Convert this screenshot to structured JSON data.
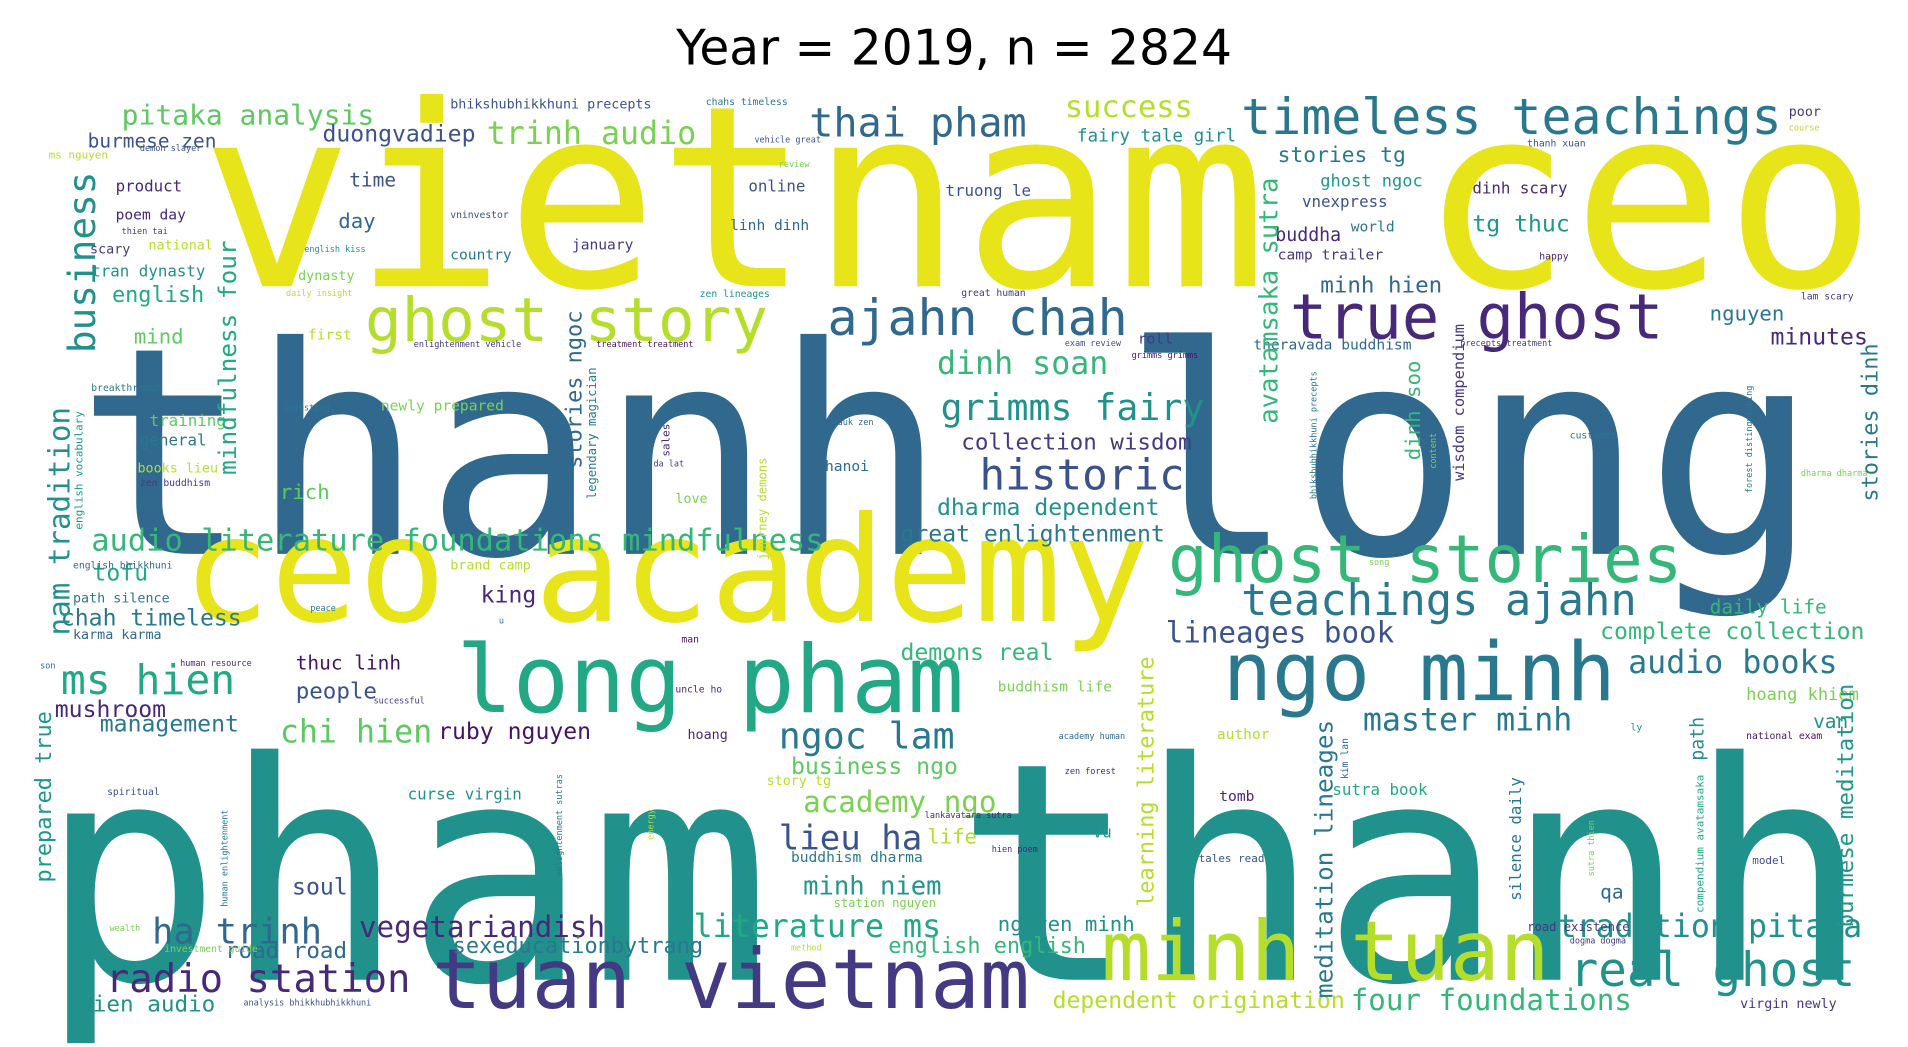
{
  "chart_data": {
    "type": "wordcloud",
    "title": "Year = 2019, n = 2824",
    "words": [
      {
        "text": "vietnam ceo",
        "color": "#e7e419"
      },
      {
        "text": "thanh long",
        "color": "#31688e"
      },
      {
        "text": "pham thanh",
        "color": "#21918c"
      },
      {
        "text": "ceo academy",
        "color": "#e7e419"
      },
      {
        "text": "long pham",
        "color": "#22a884"
      },
      {
        "text": "ngo minh",
        "color": "#2a788e"
      },
      {
        "text": "tuan vietnam",
        "color": "#443983"
      },
      {
        "text": "minh tuan",
        "color": "#b5de2b"
      },
      {
        "text": "ghost stories",
        "color": "#35b779"
      },
      {
        "text": "timeless teachings",
        "color": "#2a788e"
      },
      {
        "text": "ghost story",
        "color": "#b5de2b"
      },
      {
        "text": "true ghost",
        "color": "#482878"
      },
      {
        "text": "ajahn chah",
        "color": "#31688e"
      },
      {
        "text": "teachings ajahn",
        "color": "#2a788e"
      },
      {
        "text": "real ghost",
        "color": "#21918c"
      },
      {
        "text": "radio station",
        "color": "#482878"
      },
      {
        "text": "historic",
        "color": "#3b528b"
      },
      {
        "text": "grimms fairy",
        "color": "#21918c"
      },
      {
        "text": "thai pham",
        "color": "#31688e"
      },
      {
        "text": "trinh audio",
        "color": "#7ad151"
      },
      {
        "text": "pitaka analysis",
        "color": "#5ec962"
      },
      {
        "text": "success",
        "color": "#b5de2b"
      },
      {
        "text": "ms hien",
        "color": "#22a884"
      },
      {
        "text": "chi hien",
        "color": "#5ec962"
      },
      {
        "text": "ngoc lam",
        "color": "#2a788e"
      },
      {
        "text": "academy ngo",
        "color": "#7ad151"
      },
      {
        "text": "lieu ha",
        "color": "#3b528b"
      },
      {
        "text": "minh niem",
        "color": "#1f988b"
      },
      {
        "text": "ha trinh",
        "color": "#31688e"
      },
      {
        "text": "vegetariandish",
        "color": "#482878"
      },
      {
        "text": "literature ms",
        "color": "#22a884"
      },
      {
        "text": "tradition pitaka",
        "color": "#21918c"
      },
      {
        "text": "audio literature foundations mindfulness",
        "color": "#35b779"
      },
      {
        "text": "master minh",
        "color": "#2a788e"
      },
      {
        "text": "audio books",
        "color": "#2a788e"
      },
      {
        "text": "lineages book",
        "color": "#3b528b"
      },
      {
        "text": "dinh soan",
        "color": "#35b779"
      },
      {
        "text": "collection wisdom",
        "color": "#443983"
      },
      {
        "text": "dharma dependent",
        "color": "#21918c"
      },
      {
        "text": "great enlightenment",
        "color": "#2a788e"
      },
      {
        "text": "business ngo",
        "color": "#5ec962"
      },
      {
        "text": "four foundations",
        "color": "#35b779"
      },
      {
        "text": "dependent origination",
        "color": "#b5de2b"
      },
      {
        "text": "english english",
        "color": "#35b779"
      },
      {
        "text": "nguyen minh",
        "color": "#21918c"
      },
      {
        "text": "sexeducationbytrang",
        "color": "#2a788e"
      },
      {
        "text": "road road",
        "color": "#31688e"
      },
      {
        "text": "hien audio",
        "color": "#21918c"
      },
      {
        "text": "soul",
        "color": "#3b528b"
      },
      {
        "text": "ruby nguyen",
        "color": "#471365"
      },
      {
        "text": "thuc linh",
        "color": "#471365"
      },
      {
        "text": "people",
        "color": "#3b528b"
      },
      {
        "text": "demons real",
        "color": "#35b779"
      },
      {
        "text": "king",
        "color": "#482878"
      },
      {
        "text": "tofu",
        "color": "#22a884"
      },
      {
        "text": "chah timeless",
        "color": "#2a788e"
      },
      {
        "text": "mushroom",
        "color": "#482878"
      },
      {
        "text": "management",
        "color": "#2a788e"
      },
      {
        "text": "daily life",
        "color": "#35b779"
      },
      {
        "text": "complete collection",
        "color": "#35b779"
      },
      {
        "text": "hoang khiem",
        "color": "#7ad151"
      },
      {
        "text": "van",
        "color": "#21918c"
      },
      {
        "text": "minutes",
        "color": "#482878"
      },
      {
        "text": "nguyen",
        "color": "#2a788e"
      },
      {
        "text": "minh hien",
        "color": "#31688e"
      },
      {
        "text": "tg thuc",
        "color": "#1f988b"
      },
      {
        "text": "ghost ngoc",
        "color": "#1f988b"
      },
      {
        "text": "stories tg",
        "color": "#2a788e"
      },
      {
        "text": "vnexpress",
        "color": "#3b528b"
      },
      {
        "text": "buddha",
        "color": "#482878"
      },
      {
        "text": "world",
        "color": "#2a788e"
      },
      {
        "text": "camp trailer",
        "color": "#443983"
      },
      {
        "text": "dinh scary",
        "color": "#482878"
      },
      {
        "text": "fairy tale girl",
        "color": "#21918c"
      },
      {
        "text": "duongvadiep",
        "color": "#3b528b"
      },
      {
        "text": "burmese zen",
        "color": "#3b528b"
      },
      {
        "text": "bhikshubhikkhuni precepts",
        "color": "#3b528b"
      },
      {
        "text": "product",
        "color": "#482878"
      },
      {
        "text": "time",
        "color": "#3b528b"
      },
      {
        "text": "online",
        "color": "#3b528b"
      },
      {
        "text": "truong le",
        "color": "#3b528b"
      },
      {
        "text": "poem day",
        "color": "#482878"
      },
      {
        "text": "day",
        "color": "#31688e"
      },
      {
        "text": "linh dinh",
        "color": "#31688e"
      },
      {
        "text": "january",
        "color": "#443983"
      },
      {
        "text": "country",
        "color": "#2a788e"
      },
      {
        "text": "scary",
        "color": "#443983"
      },
      {
        "text": "national",
        "color": "#b5de2b"
      },
      {
        "text": "tran dynasty",
        "color": "#21918c"
      },
      {
        "text": "dynasty",
        "color": "#7ad151"
      },
      {
        "text": "english",
        "color": "#22a884"
      },
      {
        "text": "mind",
        "color": "#5ec962"
      },
      {
        "text": "first",
        "color": "#b5de2b"
      },
      {
        "text": "roll",
        "color": "#443983"
      },
      {
        "text": "newly prepared",
        "color": "#7ad151"
      },
      {
        "text": "training",
        "color": "#5ec962"
      },
      {
        "text": "general",
        "color": "#2a788e"
      },
      {
        "text": "books lieu",
        "color": "#b5de2b"
      },
      {
        "text": "rich",
        "color": "#5ec962"
      },
      {
        "text": "love",
        "color": "#7ad151"
      },
      {
        "text": "hanoi",
        "color": "#31688e"
      },
      {
        "text": "tomb",
        "color": "#482878"
      },
      {
        "text": "sutra book",
        "color": "#22a884"
      },
      {
        "text": "vu",
        "color": "#1f988b"
      },
      {
        "text": "life",
        "color": "#b5de2b"
      },
      {
        "text": "buddhism dharma",
        "color": "#2a788e"
      },
      {
        "text": "station nguyen",
        "color": "#7ad151"
      },
      {
        "text": "curse virgin",
        "color": "#21918c"
      },
      {
        "text": "story tg",
        "color": "#b5de2b"
      },
      {
        "text": "hoang",
        "color": "#482878"
      },
      {
        "text": "author",
        "color": "#b5de2b"
      },
      {
        "text": "buddhism life",
        "color": "#7ad151"
      },
      {
        "text": "brand camp",
        "color": "#b5de2b"
      },
      {
        "text": "path silence",
        "color": "#2a788e"
      },
      {
        "text": "karma karma",
        "color": "#31688e"
      },
      {
        "text": "tales read",
        "color": "#3b528b"
      },
      {
        "text": "road existence",
        "color": "#443983"
      },
      {
        "text": "model",
        "color": "#3b528b"
      },
      {
        "text": "virgin newly",
        "color": "#443983"
      },
      {
        "text": "poor",
        "color": "#443983"
      },
      {
        "text": "thanh xuan",
        "color": "#3b528b"
      },
      {
        "text": "happy",
        "color": "#482878"
      },
      {
        "text": "customer",
        "color": "#2a788e"
      },
      {
        "text": "ly",
        "color": "#21918c"
      },
      {
        "text": "national exam",
        "color": "#471365"
      },
      {
        "text": "uncle ho",
        "color": "#482878"
      },
      {
        "text": "successful",
        "color": "#443983"
      },
      {
        "text": "man",
        "color": "#471365"
      },
      {
        "text": "peace",
        "color": "#2a788e"
      },
      {
        "text": "u",
        "color": "#2a788e"
      },
      {
        "text": "daily insight",
        "color": "#b5de2b"
      },
      {
        "text": "zen lineages",
        "color": "#21918c"
      },
      {
        "text": "great human",
        "color": "#443983"
      },
      {
        "text": "lam scary",
        "color": "#443983"
      },
      {
        "text": "exam review",
        "color": "#3b528b"
      },
      {
        "text": "precepts treatment",
        "color": "#443983"
      },
      {
        "text": "theravada buddhism",
        "color": "#31688e"
      },
      {
        "text": "enlightenment vehicle",
        "color": "#443983"
      },
      {
        "text": "treatment treatment",
        "color": "#471365"
      },
      {
        "text": "grimms grimms",
        "color": "#471365"
      },
      {
        "text": "breakthrough",
        "color": "#2a788e"
      },
      {
        "text": "investing",
        "color": "#2a788e"
      },
      {
        "text": "paauk zen",
        "color": "#31688e"
      },
      {
        "text": "zen buddhism",
        "color": "#443983"
      },
      {
        "text": "da lat",
        "color": "#443983"
      },
      {
        "text": "dharma dharma",
        "color": "#7ad151"
      },
      {
        "text": "song",
        "color": "#7ad151"
      },
      {
        "text": "son",
        "color": "#31688e"
      },
      {
        "text": "human resource",
        "color": "#482878"
      },
      {
        "text": "academy human",
        "color": "#31688e"
      },
      {
        "text": "zen forest",
        "color": "#482878"
      },
      {
        "text": "hien poem",
        "color": "#482878"
      },
      {
        "text": "spiritual",
        "color": "#3b528b"
      },
      {
        "text": "wealth",
        "color": "#7ad151"
      },
      {
        "text": "investment guide",
        "color": "#7ad151"
      },
      {
        "text": "method",
        "color": "#b5de2b"
      },
      {
        "text": "analysis bhikkhubhikkhuni",
        "color": "#3b528b"
      },
      {
        "text": "dogma dogma",
        "color": "#443983"
      },
      {
        "text": "vehicle great",
        "color": "#3b528b"
      },
      {
        "text": "chahs timeless",
        "color": "#2a788e"
      },
      {
        "text": "review",
        "color": "#7ad151"
      },
      {
        "text": "thien tai",
        "color": "#443983"
      },
      {
        "text": "english kiss",
        "color": "#21918c"
      },
      {
        "text": "vninvestor",
        "color": "#3b528b"
      },
      {
        "text": "course",
        "color": "#b5de2b"
      },
      {
        "text": "demon slayer",
        "color": "#3b528b"
      },
      {
        "text": "ms nguyen",
        "color": "#b5de2b"
      },
      {
        "text": "english bhikkhuni",
        "color": "#31688e"
      },
      {
        "text": "lankavatara sutra",
        "color": "#482878"
      },
      {
        "text": "business",
        "color": "#21918c"
      },
      {
        "text": "nam tradition",
        "color": "#21918c"
      },
      {
        "text": "mindfulness four",
        "color": "#22a884"
      },
      {
        "text": "avatamsaka sutra",
        "color": "#35b779"
      },
      {
        "text": "stories ngoc",
        "color": "#31688e"
      },
      {
        "text": "meditation lineages",
        "color": "#2a788e"
      },
      {
        "text": "learning literature",
        "color": "#b5de2b"
      },
      {
        "text": "burmese meditation",
        "color": "#1f988b"
      },
      {
        "text": "stories dinh",
        "color": "#2a788e"
      },
      {
        "text": "prepared true",
        "color": "#1f988b"
      },
      {
        "text": "dinh soo",
        "color": "#35b779"
      },
      {
        "text": "path",
        "color": "#21918c"
      },
      {
        "text": "silence daily",
        "color": "#2a788e"
      },
      {
        "text": "wisdom compendium",
        "color": "#443983"
      },
      {
        "text": "qa",
        "color": "#31688e"
      },
      {
        "text": "legendary magician",
        "color": "#2a788e"
      },
      {
        "text": "english vocabulary",
        "color": "#1f988b"
      },
      {
        "text": "journey demons",
        "color": "#b5de2b"
      },
      {
        "text": "kim lan",
        "color": "#31688e"
      },
      {
        "text": "sutra thien",
        "color": "#7ad151"
      },
      {
        "text": "compendium avatamsaka",
        "color": "#22a884"
      },
      {
        "text": "energy",
        "color": "#b5de2b"
      },
      {
        "text": "enlightenment sutras",
        "color": "#2a788e"
      },
      {
        "text": "content",
        "color": "#7ad151"
      },
      {
        "text": "bhikshubhikkhuni precepts",
        "color": "#2a788e"
      },
      {
        "text": "forest distinguishing",
        "color": "#2a788e"
      },
      {
        "text": "human enlightenment",
        "color": "#2a788e"
      },
      {
        "text": "sales",
        "color": "#482878"
      }
    ]
  }
}
